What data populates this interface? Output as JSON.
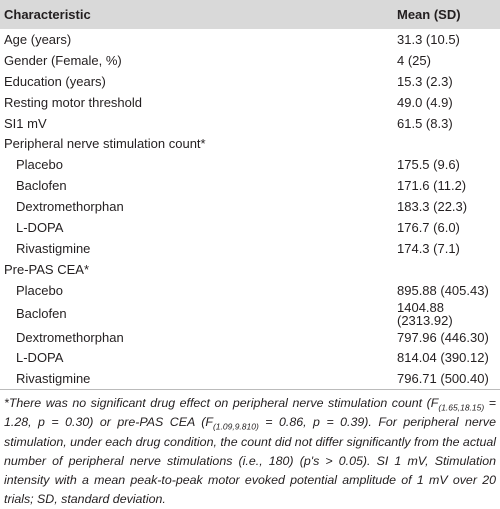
{
  "table": {
    "header": [
      "Characteristic",
      "Mean (SD)"
    ],
    "rows": [
      [
        "Age (years)",
        "31.3 (10.5)"
      ],
      [
        "Gender (Female, %)",
        "4 (25)"
      ],
      [
        "Education (years)",
        "15.3 (2.3)"
      ],
      [
        "Resting motor threshold",
        "49.0 (4.9)"
      ],
      [
        "SI1 mV",
        "61.5 (8.3)"
      ],
      {
        "label": "Peripheral nerve stimulation count*",
        "rows": [
          [
            "Placebo",
            "175.5 (9.6)"
          ],
          [
            "Baclofen",
            "171.6 (11.2)"
          ],
          [
            "Dextromethorphan",
            "183.3 (22.3)"
          ],
          [
            "L-DOPA",
            "176.7 (6.0)"
          ],
          [
            "Rivastigmine",
            "174.3 (7.1)"
          ]
        ]
      },
      {
        "label": "Pre-PAS CEA*",
        "rows": [
          [
            "Placebo",
            "895.88 (405.43)"
          ],
          [
            "Baclofen",
            "1404.88 (2313.92)"
          ],
          [
            "Dextromethorphan",
            "797.96 (446.30)"
          ],
          [
            "L-DOPA",
            "814.04 (390.12)"
          ],
          [
            "Rivastigmine",
            "796.71 (500.40)"
          ]
        ]
      }
    ]
  },
  "footnote": [
    "*There was no significant drug effect on peripheral nerve stimulation count (F",
    "(1.65,18.15)",
    " = 1.28, p = 0.30) or pre-PAS CEA (F",
    "(1.09,9.810)",
    " = 0.86, p = 0.39). For peripheral nerve stimulation, under each drug condition, the count did not differ significantly from the actual number of peripheral nerve stimulations (i.e., 180) (p's > 0.05). SI 1 mV, Stimulation intensity with a mean peak-to-peak motor evoked potential amplitude of 1 mV over 20 trials; SD, standard deviation."
  ]
}
